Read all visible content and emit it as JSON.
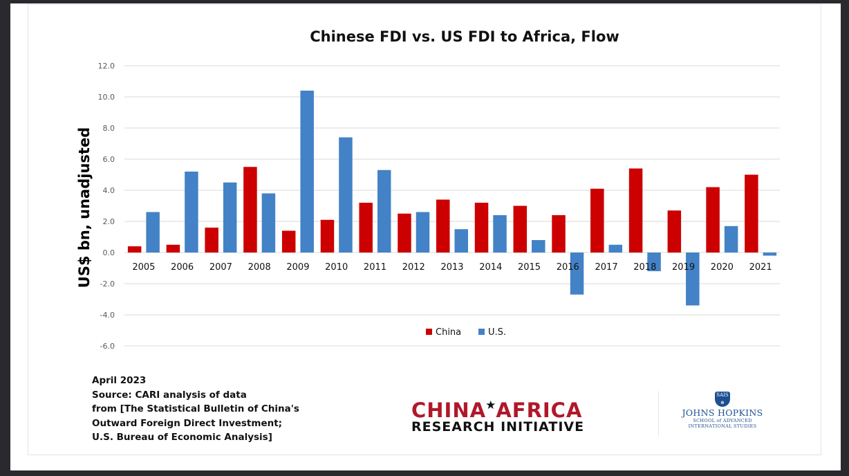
{
  "chart_data": {
    "type": "bar",
    "title": "Chinese FDI vs. US FDI to Africa, Flow",
    "xlabel": "",
    "ylabel": "US$ bn, unadjusted",
    "ylim": [
      -6.0,
      12.0
    ],
    "yticks": [
      "12.0",
      "10.0",
      "8.0",
      "6.0",
      "4.0",
      "2.0",
      "0.0",
      "-2.0",
      "-4.0",
      "-6.0"
    ],
    "grid": true,
    "legend_position": "bottom-center",
    "categories": [
      "2005",
      "2006",
      "2007",
      "2008",
      "2009",
      "2010",
      "2011",
      "2012",
      "2013",
      "2014",
      "2015",
      "2016",
      "2017",
      "2018",
      "2019",
      "2020",
      "2021"
    ],
    "series": [
      {
        "name": "China",
        "color": "#cc0000",
        "values": [
          0.4,
          0.5,
          1.6,
          5.5,
          1.4,
          2.1,
          3.2,
          2.5,
          3.4,
          3.2,
          3.0,
          2.4,
          4.1,
          5.4,
          2.7,
          4.2,
          5.0
        ]
      },
      {
        "name": "U.S.",
        "color": "#4382c6",
        "values": [
          2.6,
          5.2,
          4.5,
          3.8,
          10.4,
          7.4,
          5.3,
          2.6,
          1.5,
          2.4,
          0.8,
          -2.7,
          0.5,
          -1.2,
          -3.4,
          1.7,
          -0.2
        ]
      }
    ]
  },
  "footer": {
    "date": "April 2023",
    "source_lines": [
      "Source: CARI analysis of data",
      "from [The Statistical Bulletin of China's",
      "Outward Foreign Direct Investment;",
      "U.S. Bureau of Economic Analysis]"
    ]
  },
  "logos": {
    "cari": {
      "word1": "CHINA",
      "word2": "AFRICA",
      "star": "★",
      "line2": "RESEARCH INITIATIVE"
    },
    "jhu": {
      "shield_text": "SAIS",
      "name": "JOHNS HOPKINS",
      "sub1": "SCHOOL of ADVANCED",
      "sub2": "INTERNATIONAL STUDIES"
    }
  }
}
